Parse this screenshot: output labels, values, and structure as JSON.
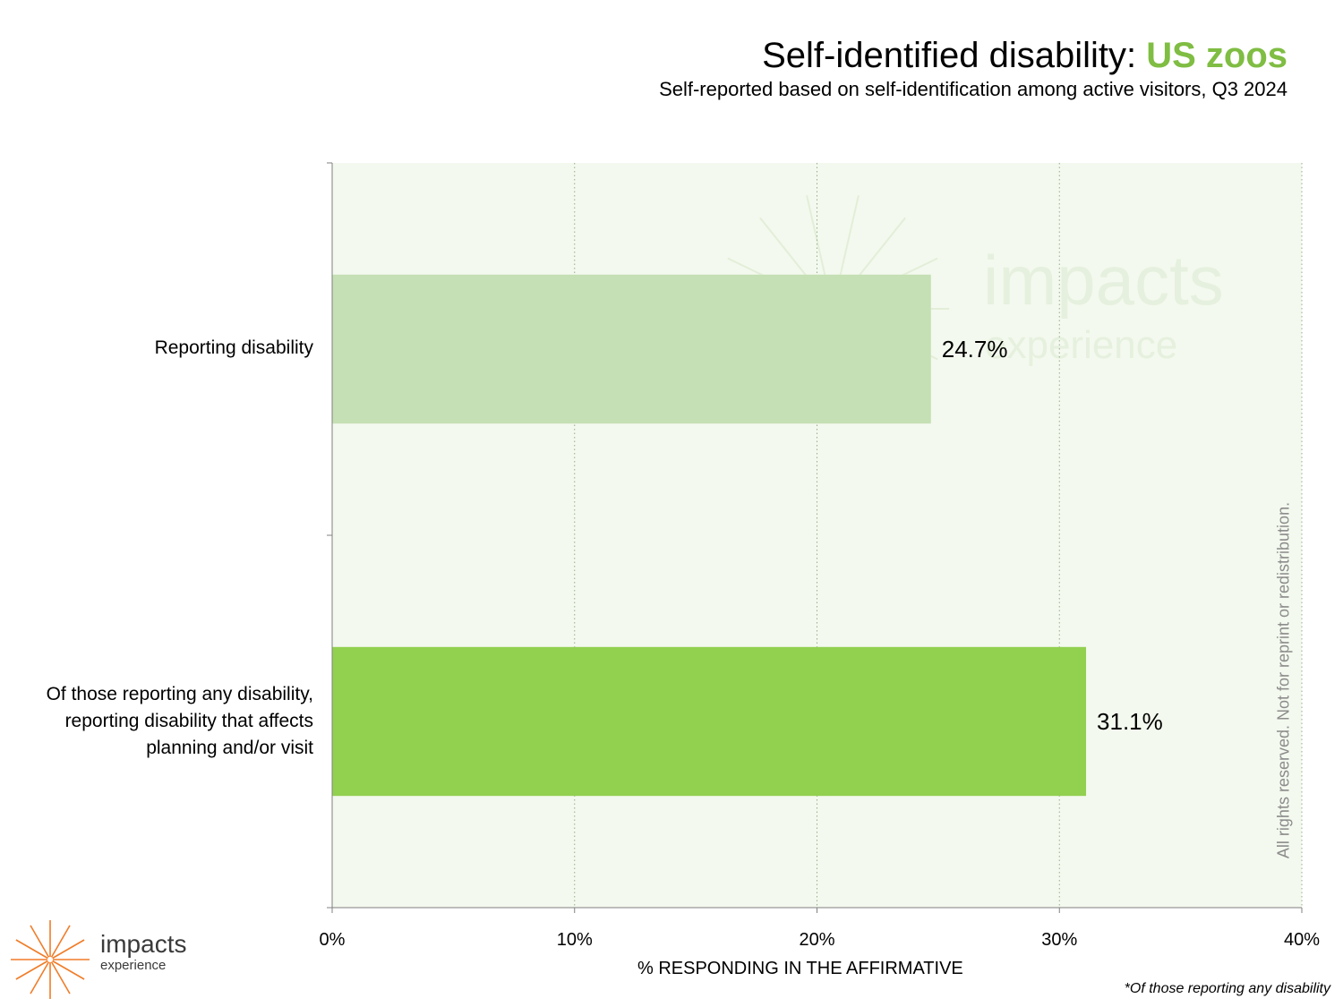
{
  "header": {
    "title_main": "Self-identified disability: ",
    "title_highlight": "US zoos",
    "subtitle": "Self-reported based on self-identification among active visitors, Q3 2024"
  },
  "chart_data": {
    "type": "bar",
    "orientation": "horizontal",
    "categories": [
      "Reporting disability",
      "Of those reporting any disability, reporting disability that affects planning and/or visit"
    ],
    "category_label_lines": [
      [
        "Reporting disability"
      ],
      [
        "Of those reporting any disability,",
        "reporting disability that affects",
        "planning and/or visit"
      ]
    ],
    "values": [
      24.7,
      31.1
    ],
    "value_labels": [
      "24.7%",
      "31.1%"
    ],
    "bar_colors": [
      "#c5e0b4",
      "#92d050"
    ],
    "xlabel": "% RESPONDING IN THE AFFIRMATIVE",
    "xlim": [
      0,
      40
    ],
    "xticks": [
      0,
      10,
      20,
      30,
      40
    ],
    "xtick_labels": [
      "0%",
      "10%",
      "20%",
      "30%",
      "40%"
    ],
    "grid": "vertical dotted",
    "plot_background": "#f3f9ee"
  },
  "watermark": {
    "line1": "impacts",
    "line2": "experience",
    "rights": "All rights reserved. Not for reprint or redistribution."
  },
  "footnote": "*Of those reporting any disability",
  "logo": {
    "line1": "impacts",
    "line2": "experience",
    "color": "#f07c28"
  }
}
